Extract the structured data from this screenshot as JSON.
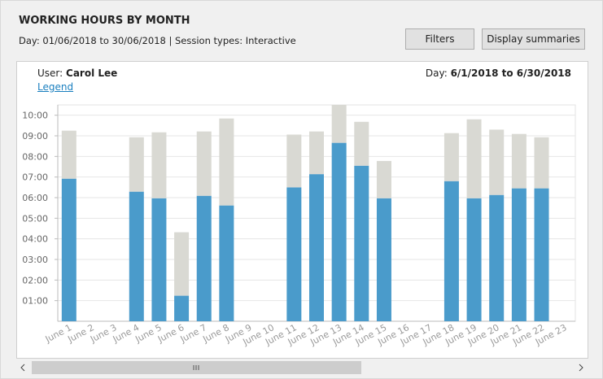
{
  "header": {
    "title": "WORKING HOURS BY MONTH",
    "subtitle": "Day: 01/06/2018 to 30/06/2018 | Session types: Interactive"
  },
  "buttons": [
    "Filters",
    "Display summaries"
  ],
  "panel": {
    "user_label": "User:",
    "user": "Carol Lee",
    "day_label": "Day:",
    "day_range": "6/1/2018 to 6/30/2018",
    "legend_link": "Legend"
  },
  "chart_data": {
    "type": "bar",
    "stacked": true,
    "categories": [
      "June 1",
      "June 2",
      "June 3",
      "June 4",
      "June 5",
      "June 6",
      "June 7",
      "June 8",
      "June 9",
      "June 10",
      "June 11",
      "June 12",
      "June 13",
      "June 14",
      "June 15",
      "June 16",
      "June 17",
      "June 18",
      "June 19",
      "June 20",
      "June 21",
      "June 22",
      "June 23"
    ],
    "series": [
      {
        "color": "#4a9bcb",
        "values": [
          6.92,
          null,
          null,
          6.29,
          5.97,
          1.24,
          6.09,
          5.62,
          null,
          null,
          6.5,
          7.14,
          8.66,
          7.55,
          5.97,
          null,
          null,
          6.8,
          5.97,
          6.13,
          6.45,
          6.45,
          null
        ]
      },
      {
        "color": "#d9d9d3",
        "values": [
          2.33,
          null,
          null,
          2.64,
          3.2,
          3.08,
          3.12,
          4.22,
          null,
          null,
          2.56,
          2.07,
          1.84,
          2.13,
          1.81,
          null,
          null,
          2.33,
          3.83,
          3.17,
          2.64,
          2.48,
          null
        ]
      }
    ],
    "ylim": [
      0,
      10.5
    ],
    "yticks": [
      {
        "value": 1,
        "label": "01:00"
      },
      {
        "value": 2,
        "label": "02:00"
      },
      {
        "value": 3,
        "label": "03:00"
      },
      {
        "value": 4,
        "label": "04:00"
      },
      {
        "value": 5,
        "label": "05:00"
      },
      {
        "value": 6,
        "label": "06:00"
      },
      {
        "value": 7,
        "label": "07:00"
      },
      {
        "value": 8,
        "label": "08:00"
      },
      {
        "value": 9,
        "label": "09:00"
      },
      {
        "value": 10,
        "label": "10:00"
      }
    ],
    "grid": true
  }
}
